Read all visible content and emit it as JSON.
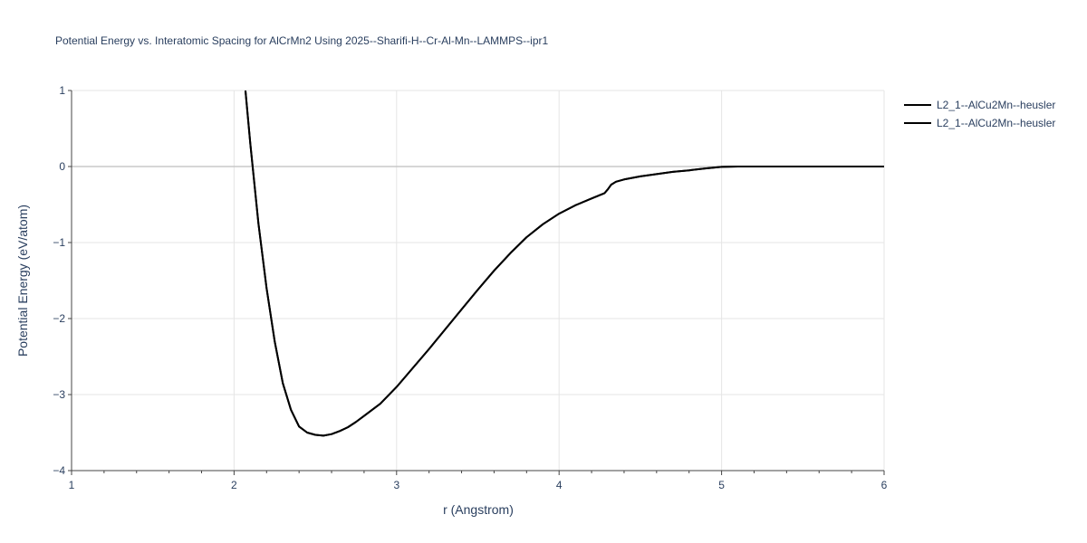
{
  "chart_data": {
    "type": "line",
    "title": "Potential Energy vs. Interatomic Spacing for AlCrMn2 Using 2025--Sharifi-H--Cr-Al-Mn--LAMMPS--ipr1",
    "xlabel": "r (Angstrom)",
    "ylabel": "Potential Energy (eV/atom)",
    "xlim": [
      1,
      6
    ],
    "ylim": [
      -4,
      1
    ],
    "x_ticks": [
      1,
      2,
      3,
      4,
      5,
      6
    ],
    "y_ticks": [
      -4,
      -3,
      -2,
      -1,
      0,
      1
    ],
    "x_tick_labels": [
      "1",
      "2",
      "3",
      "4",
      "5",
      "6"
    ],
    "y_tick_labels": [
      "−4",
      "−3",
      "−2",
      "−1",
      "0",
      "1"
    ],
    "grid": true,
    "legend_position": "top-right",
    "line_color": "#000000",
    "series": [
      {
        "name": "L2_1--AlCu2Mn--heusler",
        "x": [
          2.07,
          2.1,
          2.15,
          2.2,
          2.25,
          2.3,
          2.35,
          2.4,
          2.45,
          2.5,
          2.55,
          2.6,
          2.65,
          2.7,
          2.75,
          2.8,
          2.85,
          2.9,
          3.0,
          3.1,
          3.2,
          3.3,
          3.4,
          3.5,
          3.6,
          3.7,
          3.8,
          3.9,
          4.0,
          4.1,
          4.2,
          4.28,
          4.3,
          4.32,
          4.35,
          4.4,
          4.5,
          4.6,
          4.7,
          4.8,
          4.9,
          5.0,
          5.1,
          5.5,
          6.0
        ],
        "y": [
          1.0,
          0.3,
          -0.75,
          -1.6,
          -2.3,
          -2.85,
          -3.2,
          -3.42,
          -3.5,
          -3.53,
          -3.54,
          -3.52,
          -3.48,
          -3.43,
          -3.36,
          -3.28,
          -3.2,
          -3.12,
          -2.9,
          -2.65,
          -2.4,
          -2.14,
          -1.88,
          -1.62,
          -1.37,
          -1.14,
          -0.93,
          -0.76,
          -0.62,
          -0.51,
          -0.42,
          -0.35,
          -0.3,
          -0.24,
          -0.2,
          -0.17,
          -0.13,
          -0.1,
          -0.07,
          -0.05,
          -0.025,
          -0.005,
          0.0,
          0.0,
          0.0
        ]
      },
      {
        "name": "L2_1--AlCu2Mn--heusler",
        "x": [
          2.07,
          2.1,
          2.15,
          2.2,
          2.25,
          2.3,
          2.35,
          2.4,
          2.45,
          2.5,
          2.55,
          2.6,
          2.65,
          2.7,
          2.75,
          2.8,
          2.85,
          2.9,
          3.0,
          3.1,
          3.2,
          3.3,
          3.4,
          3.5,
          3.6,
          3.7,
          3.8,
          3.9,
          4.0,
          4.1,
          4.2,
          4.28,
          4.3,
          4.32,
          4.35,
          4.4,
          4.5,
          4.6,
          4.7,
          4.8,
          4.9,
          5.0,
          5.1,
          5.5,
          6.0
        ],
        "y": [
          1.0,
          0.3,
          -0.75,
          -1.6,
          -2.3,
          -2.85,
          -3.2,
          -3.42,
          -3.5,
          -3.53,
          -3.54,
          -3.52,
          -3.48,
          -3.43,
          -3.36,
          -3.28,
          -3.2,
          -3.12,
          -2.9,
          -2.65,
          -2.4,
          -2.14,
          -1.88,
          -1.62,
          -1.37,
          -1.14,
          -0.93,
          -0.76,
          -0.62,
          -0.51,
          -0.42,
          -0.35,
          -0.3,
          -0.24,
          -0.2,
          -0.17,
          -0.13,
          -0.1,
          -0.07,
          -0.05,
          -0.025,
          -0.005,
          0.0,
          0.0,
          0.0
        ]
      }
    ]
  }
}
